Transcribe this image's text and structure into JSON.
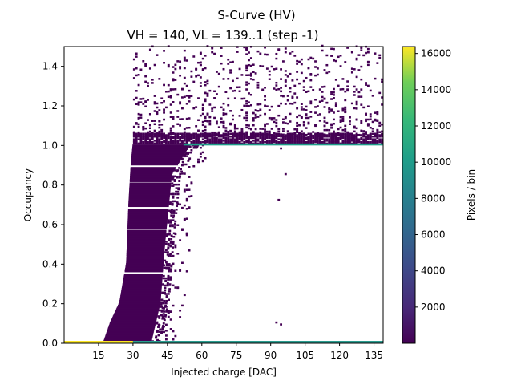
{
  "chart_data": {
    "type": "heatmap",
    "title": "S-Curve (HV)",
    "subtitle": "VH = 140, VL = 139..1 (step -1)",
    "xlabel": "Injected charge [DAC]",
    "ylabel": "Occupancy",
    "xlim": [
      0,
      139
    ],
    "ylim": [
      0,
      1.5
    ],
    "xticks": [
      15,
      30,
      45,
      60,
      75,
      90,
      105,
      120,
      135
    ],
    "yticks": [
      0.0,
      0.2,
      0.4,
      0.6,
      0.8,
      1.0,
      1.2,
      1.4
    ],
    "colorbar": {
      "label": "Pixels / bin",
      "range": [
        1,
        16384
      ],
      "ticks": [
        2000,
        4000,
        6000,
        8000,
        10000,
        12000,
        14000,
        16000
      ],
      "colormap": "viridis"
    },
    "features": {
      "zero_occupancy_band": {
        "x_range": [
          0,
          139
        ],
        "y": 0.0,
        "pixels_per_bin": 16384
      },
      "full_occupancy_band": {
        "x_range": [
          52,
          139
        ],
        "y": 1.0,
        "pixels_per_bin": 10500
      },
      "s_curve_edge": [
        [
          17,
          0.0
        ],
        [
          20,
          0.1
        ],
        [
          24,
          0.2
        ],
        [
          27,
          0.4
        ],
        [
          28,
          0.7
        ],
        [
          29,
          0.9
        ],
        [
          30,
          1.02
        ]
      ],
      "s_curve_upper_edge": [
        [
          38,
          0.0
        ],
        [
          42,
          0.2
        ],
        [
          44,
          0.5
        ],
        [
          47,
          0.85
        ],
        [
          55,
          1.0
        ]
      ],
      "noise_above_one": {
        "x_range": [
          30,
          139
        ],
        "y_range": [
          1.04,
          1.5
        ]
      }
    }
  }
}
